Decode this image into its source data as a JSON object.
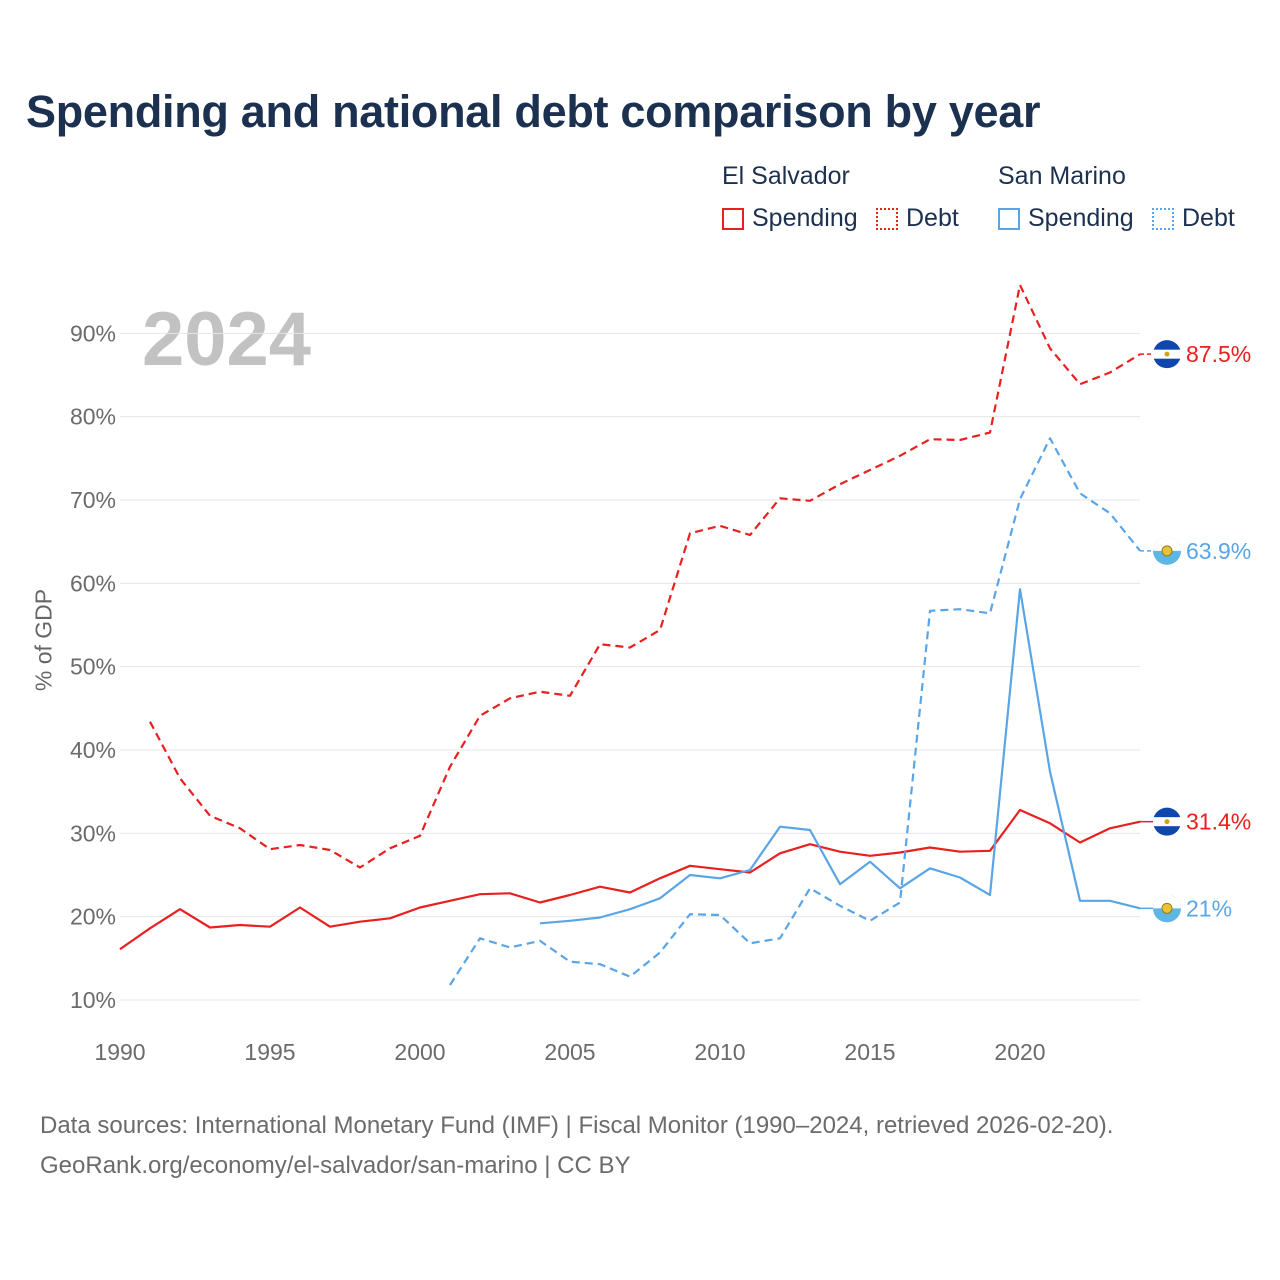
{
  "title": "Spending and national debt comparison by year",
  "legend": {
    "groups": [
      {
        "name": "El Salvador",
        "color": "#e8201f",
        "items": [
          {
            "label": "Spending",
            "style": "solid"
          },
          {
            "label": "Debt",
            "style": "dotted"
          }
        ]
      },
      {
        "name": "San Marino",
        "color": "#5aa5e6",
        "items": [
          {
            "label": "Spending",
            "style": "solid"
          },
          {
            "label": "Debt",
            "style": "dotted"
          }
        ]
      }
    ]
  },
  "year_label": "2024",
  "source": {
    "line1": "Data sources: International Monetary Fund (IMF) | Fiscal Monitor (1990–2024, retrieved 2026-02-20).",
    "line2": "GeoRank.org/economy/el-salvador/san-marino | CC BY"
  },
  "chart_data": {
    "type": "line",
    "title": "Spending and national debt comparison by year",
    "xlabel": "",
    "ylabel": "% of GDP",
    "xlim": [
      1990,
      2024
    ],
    "ylim": [
      7,
      97
    ],
    "x_ticks": [
      1990,
      1995,
      2000,
      2005,
      2010,
      2015,
      2020
    ],
    "y_ticks": [
      10,
      20,
      30,
      40,
      50,
      60,
      70,
      80,
      90
    ],
    "y_tick_labels": [
      "10%",
      "20%",
      "30%",
      "40%",
      "50%",
      "60%",
      "70%",
      "80%",
      "90%"
    ],
    "grid": true,
    "series": [
      {
        "name": "El Salvador Spending",
        "country": "El Salvador",
        "color": "#e8201f",
        "dash": "solid",
        "end_label": "31.4%",
        "end_flag": "el-salvador-flag-icon",
        "points": [
          [
            1990,
            16.1
          ],
          [
            1991,
            18.6
          ],
          [
            1992,
            20.9
          ],
          [
            1993,
            18.7
          ],
          [
            1994,
            19.0
          ],
          [
            1995,
            18.8
          ],
          [
            1996,
            21.1
          ],
          [
            1997,
            18.8
          ],
          [
            1998,
            19.4
          ],
          [
            1999,
            19.8
          ],
          [
            2000,
            21.1
          ],
          [
            2001,
            21.9
          ],
          [
            2002,
            22.7
          ],
          [
            2003,
            22.8
          ],
          [
            2004,
            21.7
          ],
          [
            2005,
            22.6
          ],
          [
            2006,
            23.6
          ],
          [
            2007,
            22.9
          ],
          [
            2008,
            24.6
          ],
          [
            2009,
            26.1
          ],
          [
            2010,
            25.7
          ],
          [
            2011,
            25.3
          ],
          [
            2012,
            27.6
          ],
          [
            2013,
            28.7
          ],
          [
            2014,
            27.8
          ],
          [
            2015,
            27.3
          ],
          [
            2016,
            27.7
          ],
          [
            2017,
            28.3
          ],
          [
            2018,
            27.8
          ],
          [
            2019,
            27.9
          ],
          [
            2020,
            32.8
          ],
          [
            2021,
            31.2
          ],
          [
            2022,
            28.9
          ],
          [
            2023,
            30.6
          ],
          [
            2024,
            31.4
          ]
        ]
      },
      {
        "name": "El Salvador Debt",
        "country": "El Salvador",
        "color": "#e8201f",
        "dash": "dashed",
        "end_label": "87.5%",
        "end_flag": "el-salvador-flag-icon",
        "points": [
          [
            1991,
            43.4
          ],
          [
            1992,
            36.6
          ],
          [
            1993,
            32.1
          ],
          [
            1994,
            30.6
          ],
          [
            1995,
            28.1
          ],
          [
            1996,
            28.6
          ],
          [
            1997,
            28.0
          ],
          [
            1998,
            25.9
          ],
          [
            1999,
            28.2
          ],
          [
            2000,
            29.7
          ],
          [
            2001,
            38.0
          ],
          [
            2002,
            44.1
          ],
          [
            2003,
            46.2
          ],
          [
            2004,
            47.0
          ],
          [
            2005,
            46.5
          ],
          [
            2006,
            52.7
          ],
          [
            2007,
            52.3
          ],
          [
            2008,
            54.4
          ],
          [
            2009,
            66.0
          ],
          [
            2010,
            66.9
          ],
          [
            2011,
            65.8
          ],
          [
            2012,
            70.2
          ],
          [
            2013,
            69.9
          ],
          [
            2014,
            71.9
          ],
          [
            2015,
            73.6
          ],
          [
            2016,
            75.3
          ],
          [
            2017,
            77.3
          ],
          [
            2018,
            77.2
          ],
          [
            2019,
            78.1
          ],
          [
            2020,
            95.8
          ],
          [
            2021,
            88.2
          ],
          [
            2022,
            83.9
          ],
          [
            2023,
            85.3
          ],
          [
            2024,
            87.5
          ]
        ]
      },
      {
        "name": "San Marino Spending",
        "country": "San Marino",
        "color": "#5aa5e6",
        "dash": "solid",
        "end_label": "21%",
        "end_flag": "san-marino-flag-icon",
        "points": [
          [
            2004,
            19.2
          ],
          [
            2005,
            19.5
          ],
          [
            2006,
            19.9
          ],
          [
            2007,
            20.9
          ],
          [
            2008,
            22.2
          ],
          [
            2009,
            25.0
          ],
          [
            2010,
            24.6
          ],
          [
            2011,
            25.6
          ],
          [
            2012,
            30.8
          ],
          [
            2013,
            30.4
          ],
          [
            2014,
            23.9
          ],
          [
            2015,
            26.6
          ],
          [
            2016,
            23.4
          ],
          [
            2017,
            25.8
          ],
          [
            2018,
            24.7
          ],
          [
            2019,
            22.6
          ],
          [
            2020,
            59.3
          ],
          [
            2021,
            37.4
          ],
          [
            2022,
            21.9
          ],
          [
            2023,
            21.9
          ],
          [
            2024,
            21.0
          ]
        ]
      },
      {
        "name": "San Marino Debt",
        "country": "San Marino",
        "color": "#5aa5e6",
        "dash": "dashed",
        "end_label": "63.9%",
        "end_flag": "san-marino-flag-icon",
        "points": [
          [
            2001,
            11.8
          ],
          [
            2002,
            17.4
          ],
          [
            2003,
            16.3
          ],
          [
            2004,
            17.1
          ],
          [
            2005,
            14.6
          ],
          [
            2006,
            14.3
          ],
          [
            2007,
            12.8
          ],
          [
            2008,
            15.7
          ],
          [
            2009,
            20.3
          ],
          [
            2010,
            20.2
          ],
          [
            2011,
            16.8
          ],
          [
            2012,
            17.4
          ],
          [
            2013,
            23.4
          ],
          [
            2014,
            21.3
          ],
          [
            2015,
            19.5
          ],
          [
            2016,
            21.7
          ],
          [
            2017,
            56.7
          ],
          [
            2018,
            56.9
          ],
          [
            2019,
            56.4
          ],
          [
            2020,
            70.1
          ],
          [
            2021,
            77.4
          ],
          [
            2022,
            70.8
          ],
          [
            2023,
            68.4
          ],
          [
            2024,
            63.9
          ]
        ]
      }
    ]
  }
}
